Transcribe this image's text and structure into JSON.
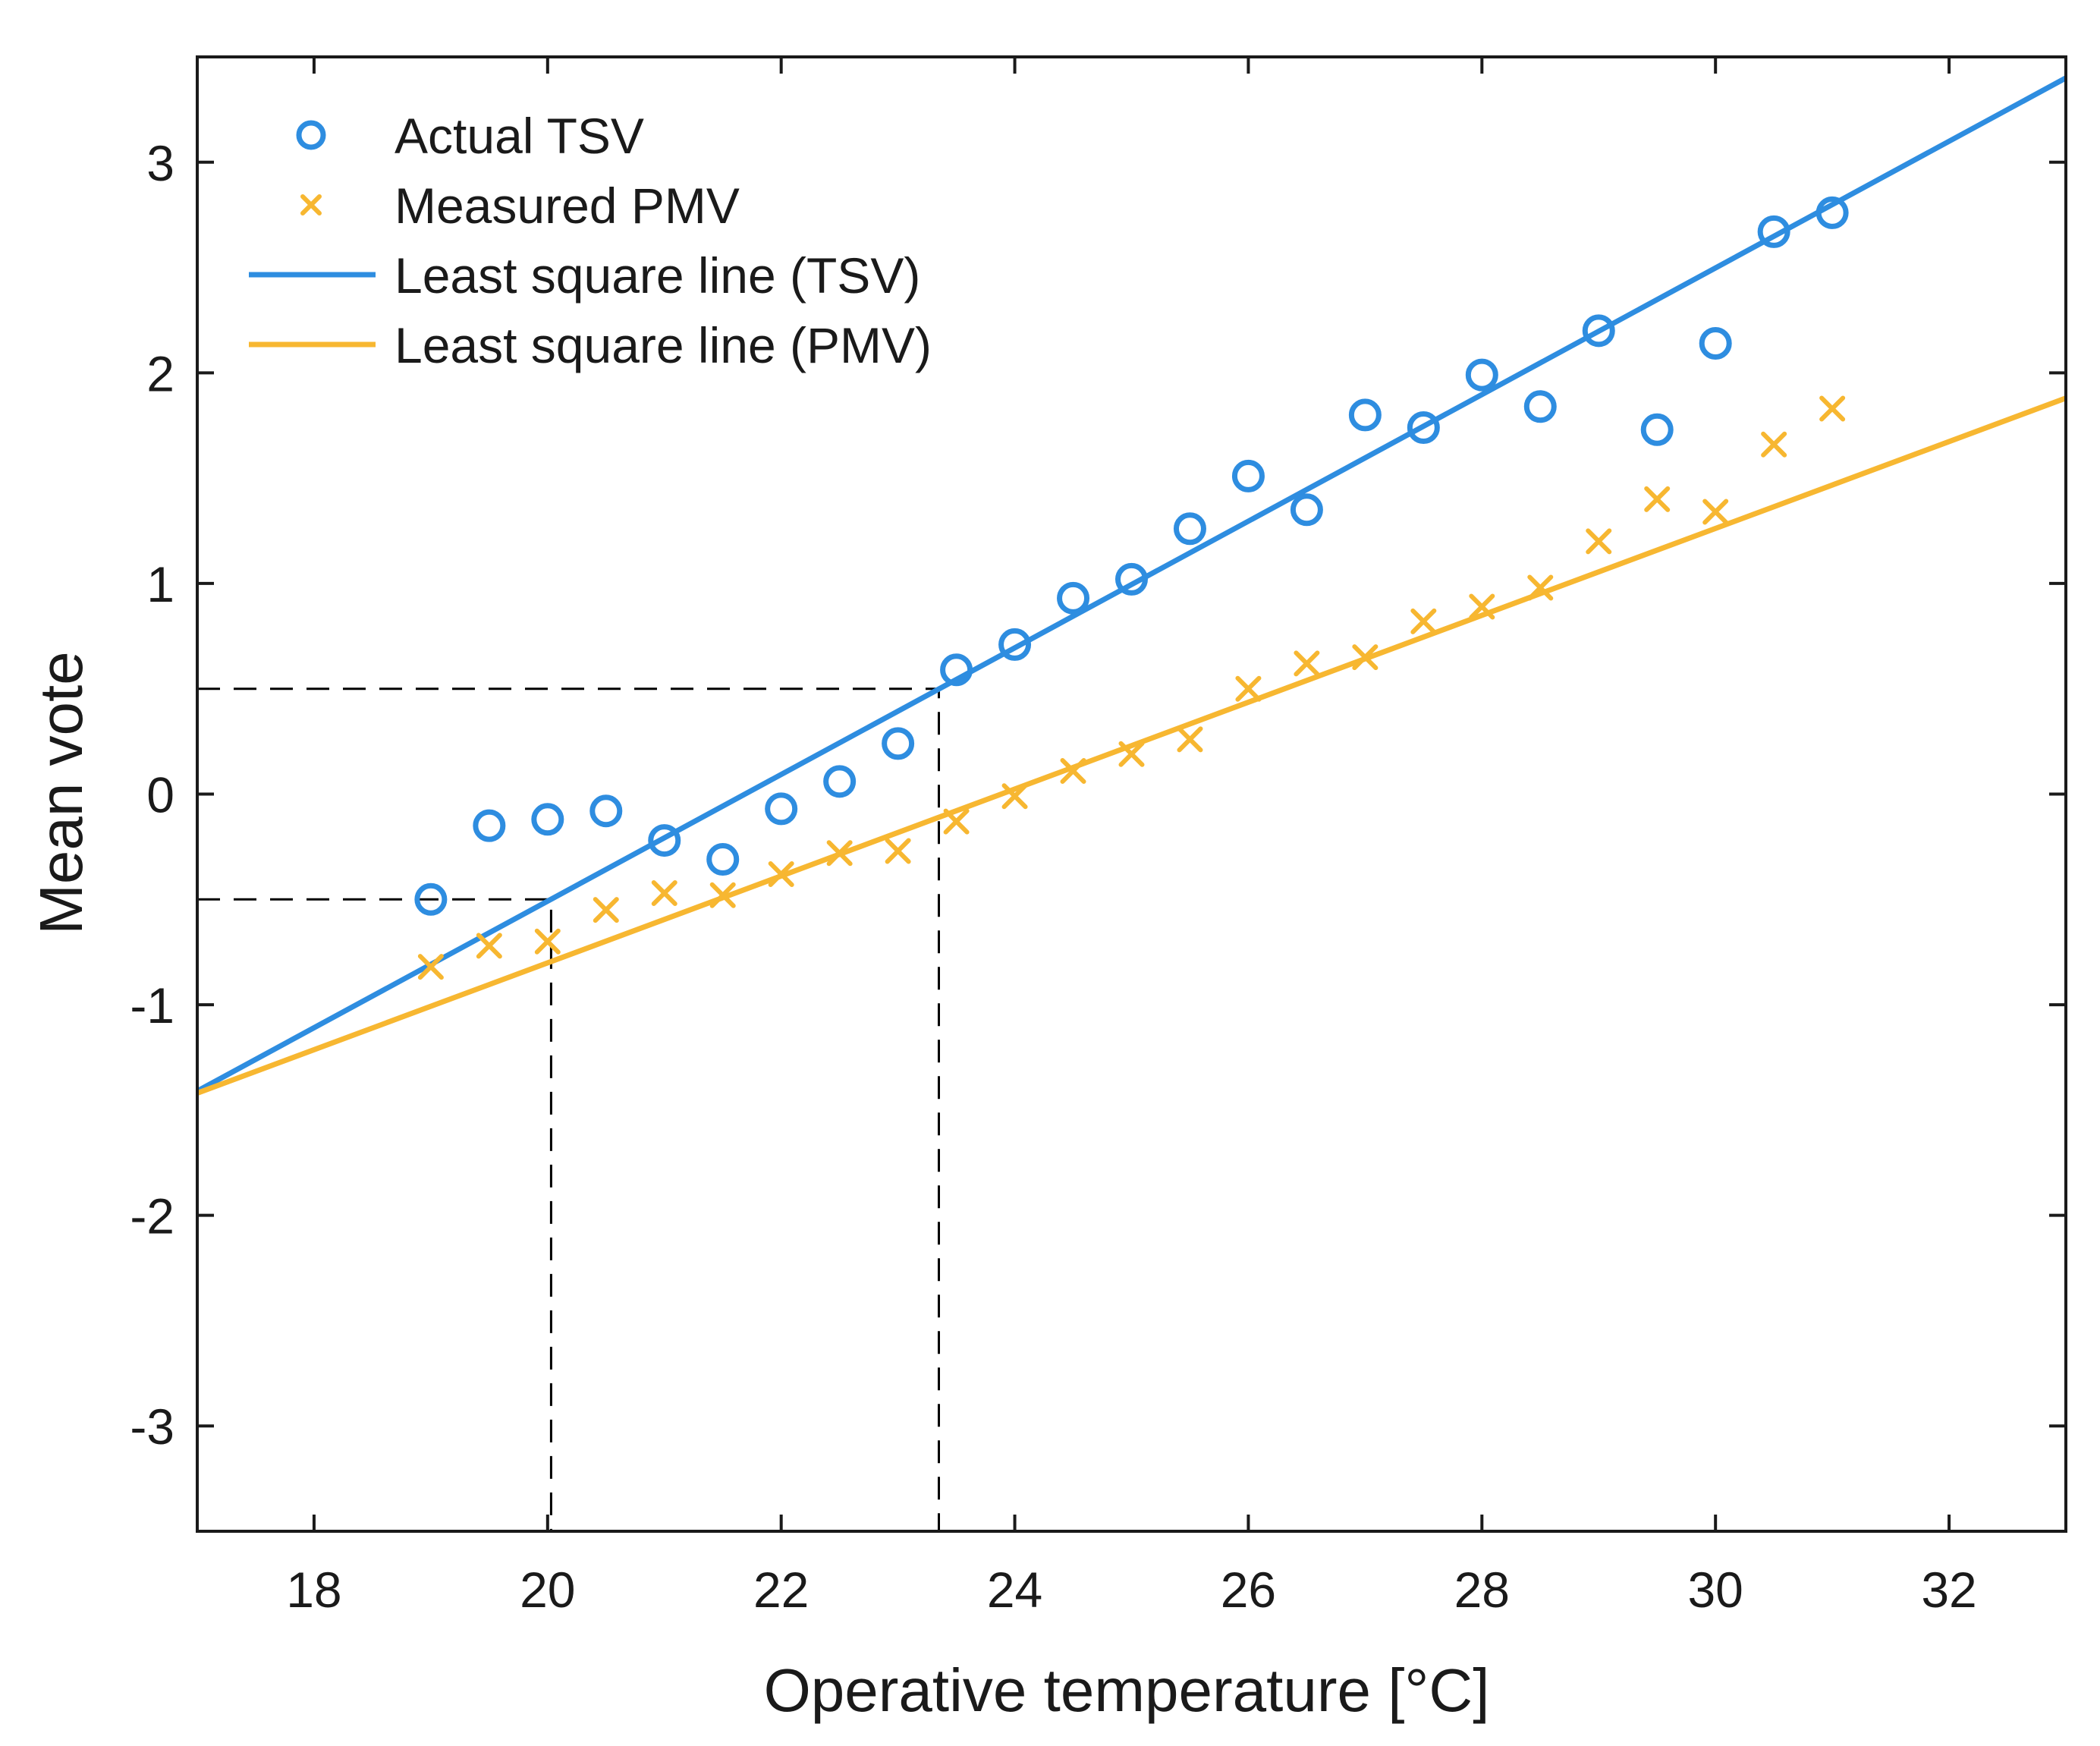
{
  "chart_data": {
    "type": "scatter",
    "title": "",
    "xlabel": "Operative temperature [°C]",
    "ylabel": "Mean vote",
    "xlim": [
      17,
      33
    ],
    "ylim": [
      -3.5,
      3.5
    ],
    "xticks": [
      18,
      20,
      22,
      24,
      26,
      28,
      30,
      32
    ],
    "yticks": [
      -3,
      -2,
      -1,
      0,
      1,
      2,
      3
    ],
    "xtick_labels": [
      "18",
      "20",
      "22",
      "24",
      "26",
      "28",
      "30",
      "32"
    ],
    "ytick_labels": [
      "-3",
      "-2",
      "-1",
      "0",
      "1",
      "2",
      "3"
    ],
    "grid": false,
    "legend_position": "top-left",
    "colors": {
      "tsv": "#2e8de0",
      "pmv": "#f7b731",
      "axis": "#1a1a1a",
      "guide": "#000000"
    },
    "series": [
      {
        "name": "Actual TSV",
        "kind": "scatter",
        "marker": "circle",
        "x": [
          19,
          19.5,
          20,
          20.5,
          21,
          21.5,
          22,
          22.5,
          23,
          23.5,
          24,
          24.5,
          25,
          25.5,
          26,
          26.5,
          27,
          27.5,
          28,
          28.5,
          29,
          29.5,
          30,
          30.5,
          31
        ],
        "y": [
          -0.5,
          -0.15,
          -0.12,
          -0.08,
          -0.22,
          -0.31,
          -0.07,
          0.06,
          0.24,
          0.59,
          0.71,
          0.93,
          1.02,
          1.26,
          1.51,
          1.35,
          1.8,
          1.74,
          1.99,
          1.84,
          2.2,
          1.73,
          2.14,
          2.67,
          2.76
        ]
      },
      {
        "name": "Measured PMV",
        "kind": "scatter",
        "marker": "x",
        "x": [
          19,
          19.5,
          20,
          20.5,
          21,
          21.5,
          22,
          22.5,
          23,
          23.5,
          24,
          24.5,
          25,
          25.5,
          26,
          26.5,
          27,
          27.5,
          28,
          28.5,
          29,
          29.5,
          30,
          30.5,
          31
        ],
        "y": [
          -0.82,
          -0.72,
          -0.7,
          -0.55,
          -0.47,
          -0.48,
          -0.38,
          -0.28,
          -0.27,
          -0.13,
          -0.01,
          0.11,
          0.19,
          0.26,
          0.5,
          0.62,
          0.65,
          0.82,
          0.89,
          0.98,
          1.2,
          1.4,
          1.34,
          1.66,
          1.83
        ]
      },
      {
        "name": "Least square line (TSV)",
        "kind": "line",
        "x": [
          17,
          33
        ],
        "y": [
          -1.41,
          3.4
        ]
      },
      {
        "name": "Least square line (PMV)",
        "kind": "line",
        "x": [
          17,
          33
        ],
        "y": [
          -1.42,
          1.88
        ]
      }
    ],
    "reference_lines": [
      {
        "name": "guide-neutral-upper",
        "points": [
          [
            17,
            0.5
          ],
          [
            23.35,
            0.5
          ],
          [
            23.35,
            -3.5
          ]
        ]
      },
      {
        "name": "guide-neutral-lower",
        "points": [
          [
            17,
            -0.5
          ],
          [
            20.03,
            -0.5
          ],
          [
            20.03,
            -3.5
          ]
        ]
      }
    ]
  }
}
